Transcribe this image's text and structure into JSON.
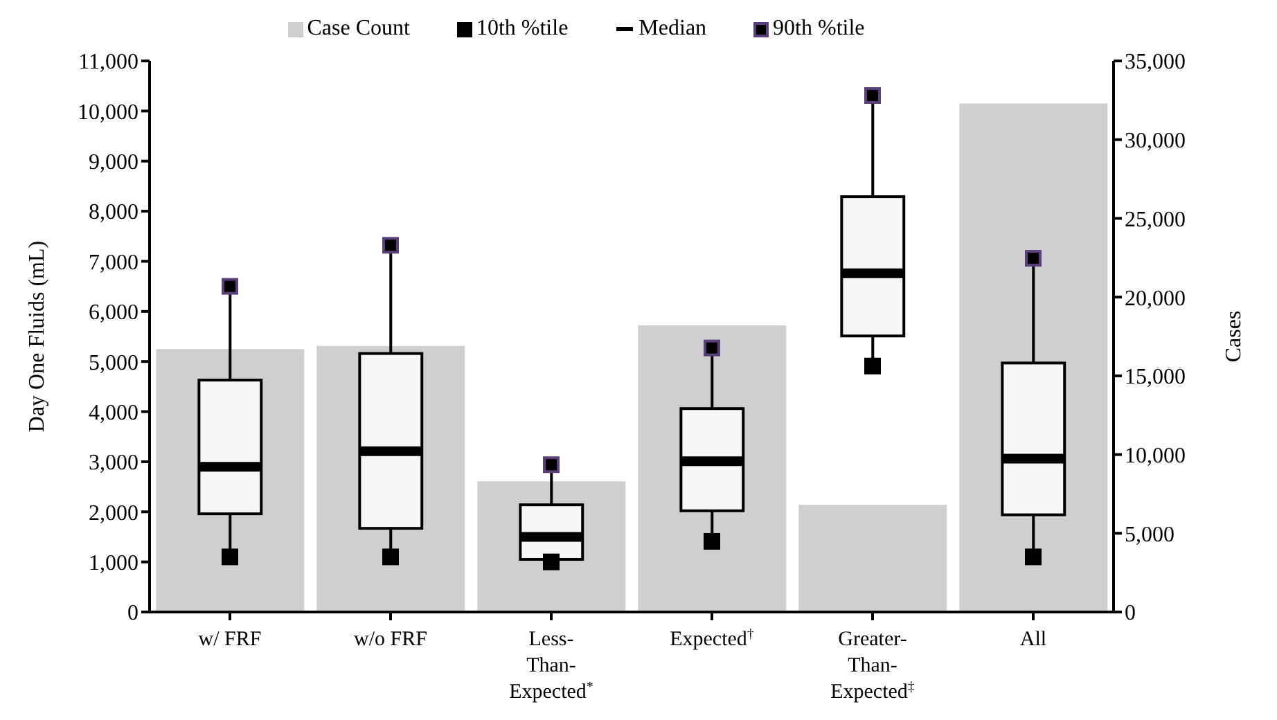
{
  "chart_data": {
    "type": "bar",
    "ylabel": "Day One Fluids (mL)",
    "y2label": "Cases",
    "categories": [
      "w/ FRF",
      "w/o FRF",
      "Less-Than-Expected$^{*}$",
      "Expected$^{†}$",
      "Greater-Than-Expected$^{‡}$",
      "All"
    ],
    "series": [
      {
        "name": "Case Count",
        "color": "#cfcfcf",
        "axis": "y2",
        "values": [
          16700,
          16900,
          8300,
          18200,
          6800,
          32300
        ]
      },
      {
        "type": "scatter",
        "name": "10th %tile",
        "color": "#000000",
        "marker": "square",
        "values": [
          1100,
          1100,
          1000,
          1410,
          4910,
          1100
        ]
      },
      {
        "type": "box",
        "name": "Median",
        "color": "#000000",
        "boxes": [
          {
            "low": 1100,
            "q1": 1960,
            "median": 2900,
            "q3": 4630,
            "high": 6500
          },
          {
            "low": 1100,
            "q1": 1670,
            "median": 3210,
            "q3": 5160,
            "high": 7320
          },
          {
            "low": 1000,
            "q1": 1050,
            "median": 1500,
            "q3": 2140,
            "high": 2940
          },
          {
            "low": 1410,
            "q1": 2020,
            "median": 3010,
            "q3": 4060,
            "high": 5270
          },
          {
            "low": 4910,
            "q1": 5510,
            "median": 6760,
            "q3": 8290,
            "high": 10310
          },
          {
            "low": 1100,
            "q1": 1940,
            "median": 3060,
            "q3": 4970,
            "high": 7060
          }
        ]
      },
      {
        "type": "scatter",
        "name": "90th %tile",
        "color": "#5b3f7a",
        "marker": "square",
        "values": [
          6500,
          7320,
          2940,
          5270,
          10310,
          7060
        ]
      }
    ],
    "ylim": [
      0,
      11000
    ],
    "yticks": [
      0,
      {
        "value": 1000,
        "label": "1,000"
      },
      {
        "value": 2000,
        "label": "2,000"
      },
      {
        "value": 3000,
        "label": "3,000"
      },
      {
        "value": 4000,
        "label": "4,000"
      },
      {
        "value": 5000,
        "label": "5,000"
      },
      {
        "value": 6000,
        "label": "6,000"
      },
      {
        "value": 7000,
        "label": "7,000"
      },
      {
        "value": 8000,
        "label": "8,000"
      },
      {
        "value": 9000,
        "label": "9,000"
      },
      {
        "value": 10000,
        "label": "10,000"
      },
      {
        "value": 11000,
        "label": "11,000"
      }
    ],
    "y2lim": [
      0,
      35000
    ],
    "y2ticks": [
      0,
      {
        "value": 5000,
        "label": "5,000"
      },
      {
        "value": 10000,
        "label": "10,000"
      },
      {
        "value": 15000,
        "label": "15,000"
      },
      {
        "value": 20000,
        "label": "20,000"
      },
      {
        "value": 25000,
        "label": "25,000"
      },
      {
        "value": 30000,
        "label": "30,000"
      },
      {
        "value": 35000,
        "label": "35,000"
      }
    ],
    "legend": "top"
  }
}
